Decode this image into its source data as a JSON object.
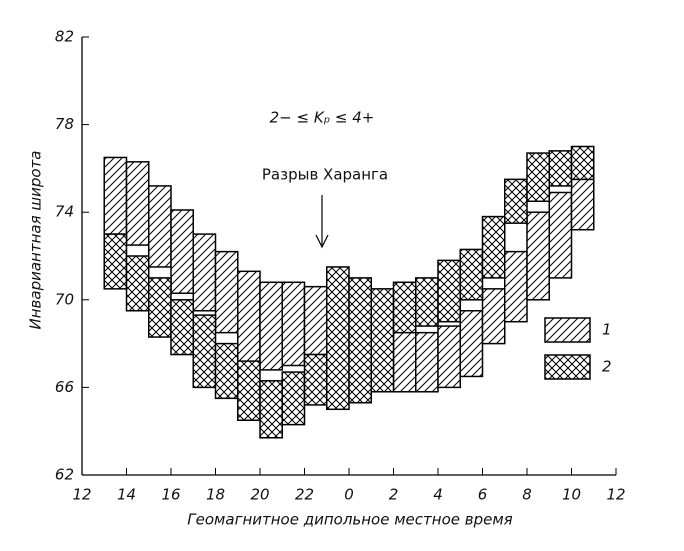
{
  "chart_data": {
    "type": "step-band",
    "y_label": "Инвариантная широта",
    "x_label": "Геомагнитное дипольное местное время",
    "annotations": [
      "2− ≤ Kₚ ≤ 4+",
      "Разрыв Харанга"
    ],
    "xlim": [
      12,
      36
    ],
    "ylim": [
      62,
      82
    ],
    "xticks": [
      12,
      14,
      16,
      18,
      20,
      22,
      {
        "value": 24,
        "label": "0"
      },
      {
        "value": 26,
        "label": "2"
      },
      {
        "value": 28,
        "label": "4"
      },
      {
        "value": 30,
        "label": "6"
      },
      {
        "value": 32,
        "label": "8"
      },
      {
        "value": 34,
        "label": "10"
      },
      {
        "value": 36,
        "label": "12"
      }
    ],
    "yticks": [
      62,
      66,
      70,
      74,
      78,
      82
    ],
    "bins": [
      13,
      14,
      15,
      16,
      17,
      18,
      19,
      20,
      21,
      22,
      23,
      24,
      25,
      26,
      27,
      28,
      29,
      30,
      31,
      32,
      33,
      34,
      35
    ],
    "series": [
      {
        "name": "1",
        "color": "#000000",
        "pattern": "hatch",
        "upper": [
          76.5,
          76.3,
          75.2,
          74.1,
          73.0,
          72.2,
          71.3,
          70.8,
          70.8,
          70.6,
          70.5,
          69.5,
          69.0,
          68.9,
          68.5,
          68.8,
          69.5,
          70.5,
          72.2,
          74.0,
          74.9,
          75.5
        ],
        "lower": [
          73.0,
          72.5,
          71.5,
          70.3,
          69.5,
          68.5,
          67.0,
          66.8,
          67.0,
          67.5,
          67.0,
          67.0,
          66.5,
          65.8,
          65.8,
          66.0,
          66.5,
          68.0,
          69.0,
          70.0,
          71.0,
          73.2
        ]
      },
      {
        "name": "2",
        "color": "#000000",
        "pattern": "crosshatch",
        "upper": [
          73.0,
          72.0,
          71.0,
          70.0,
          69.3,
          68.0,
          67.2,
          66.3,
          66.7,
          67.5,
          71.5,
          71.0,
          70.5,
          70.8,
          71.0,
          71.8,
          72.3,
          73.8,
          75.5,
          76.7,
          76.8,
          77.0
        ],
        "lower": [
          70.5,
          69.5,
          68.3,
          67.5,
          66.0,
          65.5,
          64.5,
          63.7,
          64.3,
          65.2,
          65.0,
          65.3,
          65.8,
          68.5,
          68.8,
          69.0,
          70.0,
          71.0,
          73.5,
          74.5,
          75.2,
          75.5
        ]
      }
    ]
  }
}
